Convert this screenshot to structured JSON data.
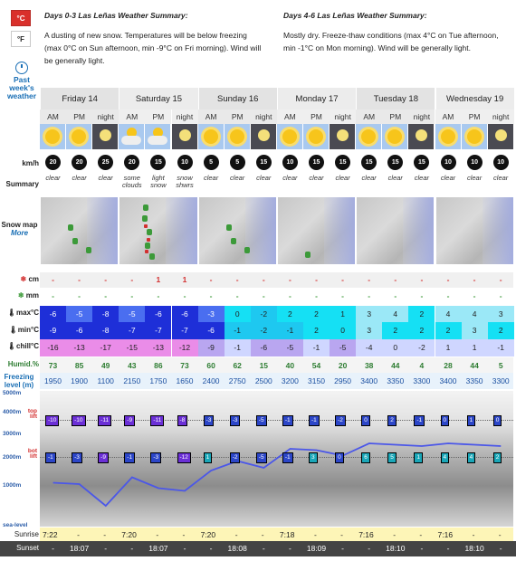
{
  "units": {
    "celsius": "°C",
    "fahrenheit": "°F"
  },
  "past_link": "Past week's weather",
  "summary": {
    "left_title": "Days 0-3 Las Leñas Weather Summary:",
    "left_text": "A dusting of new snow. Temperatures will be below freezing (max 0°C on Sun afternoon, min -9°C on Fri morning). Wind will be generally light.",
    "right_title": "Days 4-6 Las Leñas Weather Summary:",
    "right_text": "Mostly dry. Freeze-thaw conditions (max 4°C on Tue afternoon, min -1°C on Mon morning). Wind will be generally light."
  },
  "row_labels": {
    "wind": "km/h",
    "summary": "Summary",
    "snow_map": "Snow map",
    "snow_more": "More",
    "snow_cm": "cm",
    "rain_mm": "mm",
    "max": "max°C",
    "min": "min°C",
    "chill": "chill°C",
    "humid": "Humid.%",
    "freezing": "Freezing level (m)",
    "sunrise": "Sunrise",
    "sunset": "Sunset"
  },
  "chart_labels": {
    "alt_5000": "5000m",
    "alt_4000": "4000m",
    "alt_3000": "3000m",
    "alt_2000": "2000m",
    "alt_1000": "1000m",
    "sea_level": "sea-level",
    "top_lift": "top lift",
    "bot_lift": "bot lift"
  },
  "days": [
    {
      "name": "Friday 14"
    },
    {
      "name": "Saturday 15"
    },
    {
      "name": "Sunday 16"
    },
    {
      "name": "Monday 17"
    },
    {
      "name": "Tuesday 18"
    },
    {
      "name": "Wednesday 19"
    }
  ],
  "slots": [
    "AM",
    "PM",
    "night"
  ],
  "periods": [
    {
      "icon": "sun-icon",
      "wind": "20",
      "wind_color": "#111",
      "summary": "clear",
      "snow": "-",
      "rain": "-",
      "max": "-6",
      "min": "-9",
      "chill": "-16",
      "humid": "73",
      "freeze": "1950",
      "top_lift": "-10",
      "bot_lift": "-1"
    },
    {
      "icon": "sun-icon",
      "wind": "20",
      "wind_color": "#111",
      "summary": "clear",
      "snow": "-",
      "rain": "-",
      "max": "-5",
      "min": "-6",
      "chill": "-13",
      "humid": "85",
      "freeze": "1900",
      "top_lift": "-10",
      "bot_lift": "-3"
    },
    {
      "icon": "moon-icon",
      "wind": "25",
      "wind_color": "#111",
      "summary": "clear",
      "snow": "-",
      "rain": "-",
      "max": "-8",
      "min": "-8",
      "chill": "-17",
      "humid": "49",
      "freeze": "1100",
      "top_lift": "-11",
      "bot_lift": "-9"
    },
    {
      "icon": "cloud-sun-icon",
      "wind": "20",
      "wind_color": "#111",
      "summary": "some clouds",
      "snow": "-",
      "rain": "-",
      "max": "-5",
      "min": "-7",
      "chill": "-15",
      "humid": "43",
      "freeze": "2150",
      "top_lift": "-9",
      "bot_lift": "-1"
    },
    {
      "icon": "snow-cloud-icon",
      "wind": "15",
      "wind_color": "#111",
      "summary": "light snow",
      "snow": "1",
      "rain": "-",
      "max": "-6",
      "min": "-7",
      "chill": "-13",
      "humid": "86",
      "freeze": "1750",
      "top_lift": "-11",
      "bot_lift": "-3"
    },
    {
      "icon": "snow-night-icon",
      "wind": "10",
      "wind_color": "#111",
      "summary": "snow shwrs",
      "snow": "1",
      "rain": "-",
      "max": "-6",
      "min": "-7",
      "chill": "-12",
      "humid": "73",
      "freeze": "1650",
      "top_lift": "-8",
      "bot_lift": "-12"
    },
    {
      "icon": "sun-icon",
      "wind": "5",
      "wind_color": "#111",
      "summary": "clear",
      "snow": "-",
      "rain": "-",
      "max": "-3",
      "min": "-6",
      "chill": "-9",
      "humid": "60",
      "freeze": "2400",
      "top_lift": "-3",
      "bot_lift": "1"
    },
    {
      "icon": "sun-icon",
      "wind": "5",
      "wind_color": "#111",
      "summary": "clear",
      "snow": "-",
      "rain": "-",
      "max": "0",
      "min": "-1",
      "chill": "-1",
      "humid": "62",
      "freeze": "2750",
      "top_lift": "-3",
      "bot_lift": "-2"
    },
    {
      "icon": "moon-icon",
      "wind": "15",
      "wind_color": "#111",
      "summary": "clear",
      "snow": "-",
      "rain": "-",
      "max": "-2",
      "min": "-2",
      "chill": "-6",
      "humid": "15",
      "freeze": "2500",
      "top_lift": "-5",
      "bot_lift": "-5"
    },
    {
      "icon": "sun-icon",
      "wind": "10",
      "wind_color": "#111",
      "summary": "clear",
      "snow": "-",
      "rain": "-",
      "max": "2",
      "min": "-1",
      "chill": "-5",
      "humid": "40",
      "freeze": "3200",
      "top_lift": "-1",
      "bot_lift": "-1"
    },
    {
      "icon": "sun-icon",
      "wind": "15",
      "wind_color": "#111",
      "summary": "clear",
      "snow": "-",
      "rain": "-",
      "max": "2",
      "min": "2",
      "chill": "-1",
      "humid": "54",
      "freeze": "3150",
      "top_lift": "-1",
      "bot_lift": "3"
    },
    {
      "icon": "moon-icon",
      "wind": "15",
      "wind_color": "#111",
      "summary": "clear",
      "snow": "-",
      "rain": "-",
      "max": "1",
      "min": "0",
      "chill": "-5",
      "humid": "20",
      "freeze": "2950",
      "top_lift": "-2",
      "bot_lift": "0"
    },
    {
      "icon": "sun-icon",
      "wind": "15",
      "wind_color": "#111",
      "summary": "clear",
      "snow": "-",
      "rain": "-",
      "max": "3",
      "min": "3",
      "chill": "-4",
      "humid": "38",
      "freeze": "3400",
      "top_lift": "0",
      "bot_lift": "6"
    },
    {
      "icon": "sun-icon",
      "wind": "15",
      "wind_color": "#111",
      "summary": "clear",
      "snow": "-",
      "rain": "-",
      "max": "4",
      "min": "2",
      "chill": "0",
      "humid": "44",
      "freeze": "3350",
      "top_lift": "2",
      "bot_lift": "5"
    },
    {
      "icon": "moon-icon",
      "wind": "15",
      "wind_color": "#111",
      "summary": "clear",
      "snow": "-",
      "rain": "-",
      "max": "2",
      "min": "2",
      "chill": "-2",
      "humid": "4",
      "freeze": "3300",
      "top_lift": "-1",
      "bot_lift": "1"
    },
    {
      "icon": "sun-icon",
      "wind": "10",
      "wind_color": "#111",
      "summary": "clear",
      "snow": "-",
      "rain": "-",
      "max": "4",
      "min": "2",
      "chill": "1",
      "humid": "28",
      "freeze": "3400",
      "top_lift": "0",
      "bot_lift": "4"
    },
    {
      "icon": "sun-icon",
      "wind": "10",
      "wind_color": "#111",
      "summary": "clear",
      "snow": "-",
      "rain": "-",
      "max": "4",
      "min": "3",
      "chill": "1",
      "humid": "44",
      "freeze": "3350",
      "top_lift": "1",
      "bot_lift": "4"
    },
    {
      "icon": "moon-icon",
      "wind": "10",
      "wind_color": "#111",
      "summary": "clear",
      "snow": "-",
      "rain": "-",
      "max": "3",
      "min": "2",
      "chill": "-1",
      "humid": "5",
      "freeze": "3300",
      "top_lift": "0",
      "bot_lift": "2"
    }
  ],
  "sun": [
    {
      "rise": "7:22",
      "set": "18:07"
    },
    {
      "rise": "7:20",
      "set": "18:07"
    },
    {
      "rise": "7:20",
      "set": "18:08"
    },
    {
      "rise": "7:18",
      "set": "18:09"
    },
    {
      "rise": "7:16",
      "set": "18:10"
    },
    {
      "rise": "7:16",
      "set": "18:10"
    }
  ],
  "colors": {
    "cold_deep": "#1e2fd8",
    "cold": "#4a6ef0",
    "cool": "#1ec8f0",
    "cyan": "#15e0f4",
    "ice": "#9be8f7",
    "chill_pink": "#ea8ce8",
    "chill_lav": "#b9a6f0",
    "chill_light": "#cfd6ff",
    "accent_red": "#d9302b",
    "link_blue": "#1a6fb5"
  }
}
